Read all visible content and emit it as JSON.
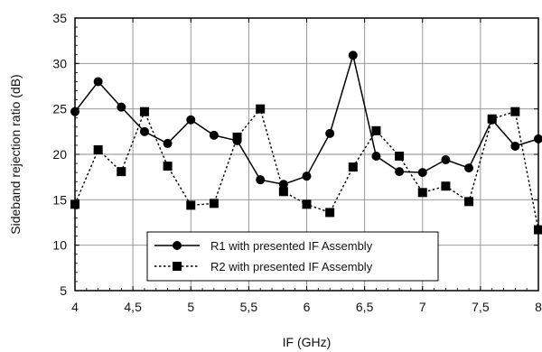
{
  "chart_data": {
    "type": "line",
    "xlabel": "IF (GHz)",
    "ylabel": "Sideband rejection ratio (dB)",
    "xlim": [
      4,
      8
    ],
    "ylim": [
      5,
      35
    ],
    "xticks": [
      4,
      4.5,
      5,
      5.5,
      6,
      6.5,
      7,
      7.5,
      8
    ],
    "xtick_labels": [
      "4",
      "4,5",
      "5",
      "5,5",
      "6",
      "6,5",
      "7",
      "7,5",
      "8"
    ],
    "yticks": [
      5,
      10,
      15,
      20,
      25,
      30,
      35
    ],
    "ytick_labels": [
      "5",
      "10",
      "15",
      "20",
      "25",
      "30",
      "35"
    ],
    "grid": true,
    "legend_position": "bottom-center",
    "series": [
      {
        "name": "R1 with presented IF Assembly",
        "marker": "circle",
        "line_style": "solid",
        "color": "#000000",
        "x": [
          4.0,
          4.2,
          4.4,
          4.6,
          4.8,
          5.0,
          5.2,
          5.4,
          5.6,
          5.8,
          6.0,
          6.2,
          6.4,
          6.6,
          6.8,
          7.0,
          7.2,
          7.4,
          7.6,
          7.8,
          8.0
        ],
        "y": [
          24.7,
          28.0,
          25.2,
          22.5,
          21.2,
          23.8,
          22.1,
          21.5,
          17.2,
          16.7,
          17.6,
          22.3,
          30.9,
          19.8,
          18.1,
          18.0,
          19.4,
          18.5,
          23.8,
          20.9,
          21.7
        ]
      },
      {
        "name": "R2 with presented IF Assembly",
        "marker": "square",
        "line_style": "dotted",
        "color": "#000000",
        "x": [
          4.0,
          4.2,
          4.4,
          4.6,
          4.8,
          5.0,
          5.2,
          5.4,
          5.6,
          5.8,
          6.0,
          6.2,
          6.4,
          6.6,
          6.8,
          7.0,
          7.2,
          7.4,
          7.6,
          7.8,
          8.0
        ],
        "y": [
          14.5,
          20.5,
          18.1,
          24.7,
          18.7,
          14.4,
          14.6,
          21.9,
          25.0,
          15.9,
          14.5,
          13.6,
          18.6,
          22.6,
          19.8,
          15.8,
          16.5,
          14.8,
          23.9,
          24.7,
          11.7
        ]
      }
    ]
  }
}
